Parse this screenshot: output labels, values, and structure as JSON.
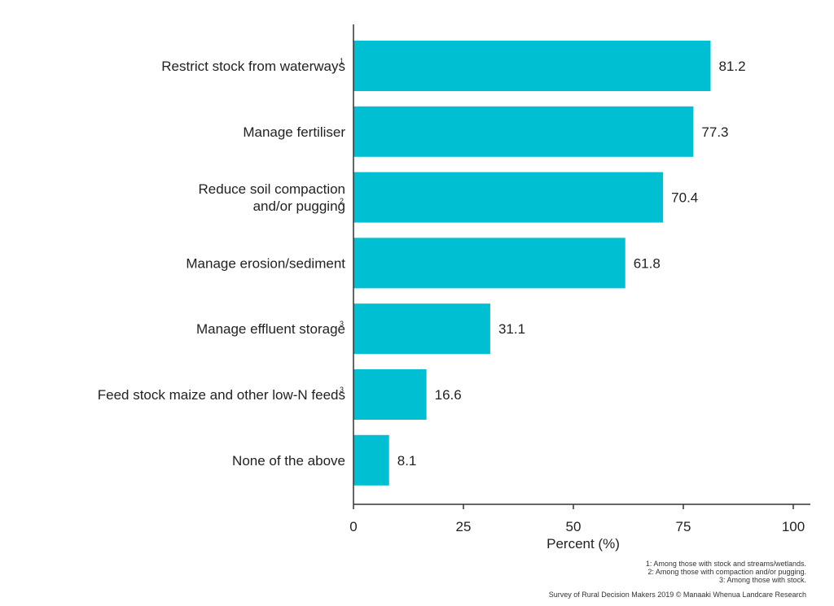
{
  "chart_data": {
    "type": "bar",
    "orientation": "horizontal",
    "categories": [
      {
        "label": "Restrict stock from waterways",
        "sup": "1"
      },
      {
        "label": "Manage fertiliser",
        "sup": ""
      },
      {
        "label": [
          "Reduce soil compaction",
          "and/or pugging"
        ],
        "sup": "2"
      },
      {
        "label": "Manage erosion/sediment",
        "sup": ""
      },
      {
        "label": "Manage effluent storage",
        "sup": "3"
      },
      {
        "label": "Feed stock maize and other low-N feeds",
        "sup": "3"
      },
      {
        "label": "None of the above",
        "sup": ""
      }
    ],
    "values": [
      81.2,
      77.3,
      70.4,
      61.8,
      31.1,
      16.6,
      8.1
    ],
    "xlabel": "Percent (%)",
    "xlim": [
      0,
      100
    ],
    "xticks": [
      0,
      25,
      50,
      75,
      100
    ],
    "bar_color": "#00BFD3",
    "grid": false
  },
  "footnotes": [
    "1: Among those with stock and streams/wetlands.",
    "2: Among those with compaction and/or pugging.",
    "3: Among those with stock."
  ],
  "source": "Survey of Rural Decision Makers 2019 © Manaaki Whenua Landcare Research"
}
